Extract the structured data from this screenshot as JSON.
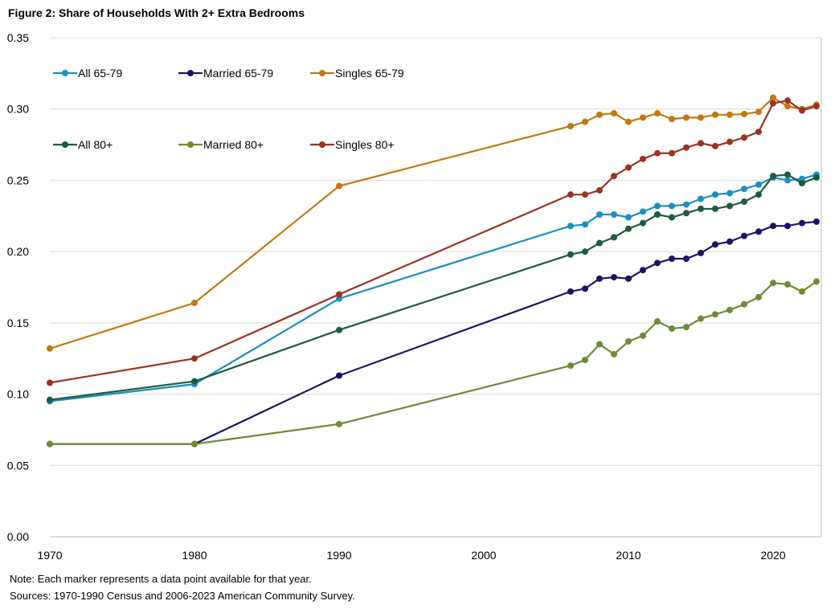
{
  "chart_data": {
    "type": "line",
    "title": "Figure 2: Share of Households With 2+ Extra Bedrooms",
    "xlabel": "",
    "ylabel": "",
    "xlim": [
      1970,
      2023
    ],
    "ylim": [
      0,
      0.35
    ],
    "x_ticks": [
      "1970",
      "1980",
      "1990",
      "2000",
      "2010",
      "2020"
    ],
    "y_ticks": [
      "0.00",
      "0.05",
      "0.10",
      "0.15",
      "0.20",
      "0.25",
      "0.30",
      "0.35"
    ],
    "grid": "horizontal",
    "legend": "top-left, inside plot, two rows",
    "x": [
      1970,
      1980,
      1990,
      2006,
      2007,
      2008,
      2009,
      2010,
      2011,
      2012,
      2013,
      2014,
      2015,
      2016,
      2017,
      2018,
      2019,
      2020,
      2021,
      2022,
      2023
    ],
    "series": [
      {
        "name": "All 65-79",
        "color": "#1b8fc1",
        "values": [
          0.095,
          0.107,
          0.167,
          0.218,
          0.219,
          0.226,
          0.226,
          0.224,
          0.228,
          0.232,
          0.232,
          0.233,
          0.237,
          0.24,
          0.241,
          0.244,
          0.247,
          0.252,
          0.25,
          0.251,
          0.254
        ]
      },
      {
        "name": "Married 65-79",
        "color": "#1d1464",
        "values": [
          0.065,
          0.065,
          0.113,
          0.172,
          0.174,
          0.181,
          0.182,
          0.181,
          0.187,
          0.192,
          0.195,
          0.195,
          0.199,
          0.205,
          0.207,
          0.211,
          0.214,
          0.218,
          0.218,
          0.22,
          0.221
        ]
      },
      {
        "name": "Singles 65-79",
        "color": "#c17a12",
        "values": [
          0.132,
          0.164,
          0.246,
          0.288,
          0.291,
          0.296,
          0.297,
          0.291,
          0.294,
          0.297,
          0.293,
          0.294,
          0.294,
          0.296,
          0.296,
          0.2965,
          0.298,
          0.308,
          0.302,
          0.3,
          0.303
        ]
      },
      {
        "name": "All 80+",
        "color": "#1f5b3d",
        "values": [
          0.096,
          0.109,
          0.145,
          0.198,
          0.2,
          0.206,
          0.21,
          0.216,
          0.22,
          0.226,
          0.224,
          0.227,
          0.23,
          0.23,
          0.232,
          0.235,
          0.24,
          0.253,
          0.254,
          0.248,
          0.252
        ]
      },
      {
        "name": "Married 80+",
        "color": "#6f8a35",
        "values": [
          0.065,
          0.065,
          0.079,
          0.12,
          0.124,
          0.135,
          0.128,
          0.137,
          0.141,
          0.151,
          0.146,
          0.147,
          0.153,
          0.156,
          0.159,
          0.163,
          0.168,
          0.178,
          0.177,
          0.172,
          0.179
        ]
      },
      {
        "name": "Singles 80+",
        "color": "#9b3323",
        "values": [
          0.108,
          0.125,
          0.17,
          0.24,
          0.24,
          0.243,
          0.253,
          0.259,
          0.265,
          0.269,
          0.269,
          0.273,
          0.276,
          0.274,
          0.277,
          0.28,
          0.284,
          0.304,
          0.306,
          0.299,
          0.302
        ]
      }
    ]
  },
  "notes": {
    "note": "Note: Each marker represents a data point available for that year.",
    "sources": "Sources: 1970-1990  Census and 2006-2023  American Community Survey."
  }
}
